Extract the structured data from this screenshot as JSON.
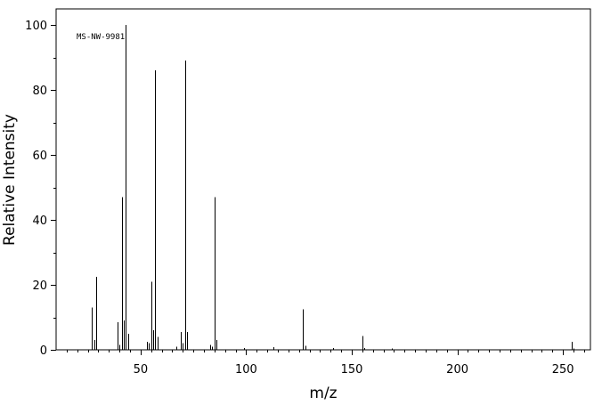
{
  "chart_data": {
    "type": "bar",
    "title": "",
    "annotation": "MS-NW-9981",
    "xlabel": "m/z",
    "ylabel": "Relative Intensity",
    "xlim": [
      10,
      263
    ],
    "ylim": [
      0,
      100
    ],
    "grid": false,
    "x_ticks": [
      50,
      100,
      150,
      200,
      250
    ],
    "y_ticks": [
      0,
      20,
      40,
      60,
      80,
      100
    ],
    "x_ticks_labels": [
      "50",
      "100",
      "150",
      "200",
      "250"
    ],
    "y_ticks_labels": [
      "0",
      "20",
      "40",
      "60",
      "80",
      "100"
    ],
    "peaks": [
      {
        "mz": 27,
        "intensity": 13
      },
      {
        "mz": 28,
        "intensity": 3
      },
      {
        "mz": 29,
        "intensity": 22.5
      },
      {
        "mz": 39,
        "intensity": 8.5
      },
      {
        "mz": 40,
        "intensity": 1.5
      },
      {
        "mz": 41,
        "intensity": 47
      },
      {
        "mz": 42,
        "intensity": 9
      },
      {
        "mz": 43,
        "intensity": 100
      },
      {
        "mz": 44,
        "intensity": 5
      },
      {
        "mz": 53,
        "intensity": 2.5
      },
      {
        "mz": 54,
        "intensity": 2
      },
      {
        "mz": 55,
        "intensity": 21
      },
      {
        "mz": 56,
        "intensity": 6
      },
      {
        "mz": 57,
        "intensity": 86
      },
      {
        "mz": 58,
        "intensity": 4
      },
      {
        "mz": 67,
        "intensity": 1
      },
      {
        "mz": 69,
        "intensity": 5.5
      },
      {
        "mz": 70,
        "intensity": 2
      },
      {
        "mz": 71,
        "intensity": 89
      },
      {
        "mz": 72,
        "intensity": 5.5
      },
      {
        "mz": 83,
        "intensity": 1.5
      },
      {
        "mz": 84,
        "intensity": 1
      },
      {
        "mz": 85,
        "intensity": 47
      },
      {
        "mz": 86,
        "intensity": 3
      },
      {
        "mz": 99,
        "intensity": 0.5
      },
      {
        "mz": 113,
        "intensity": 0.8
      },
      {
        "mz": 127,
        "intensity": 12.5
      },
      {
        "mz": 128,
        "intensity": 1.2
      },
      {
        "mz": 141,
        "intensity": 0.6
      },
      {
        "mz": 155,
        "intensity": 4.2
      },
      {
        "mz": 156,
        "intensity": 0.5
      },
      {
        "mz": 169,
        "intensity": 0.4
      },
      {
        "mz": 254,
        "intensity": 2.5
      },
      {
        "mz": 255,
        "intensity": 0.4
      }
    ]
  }
}
